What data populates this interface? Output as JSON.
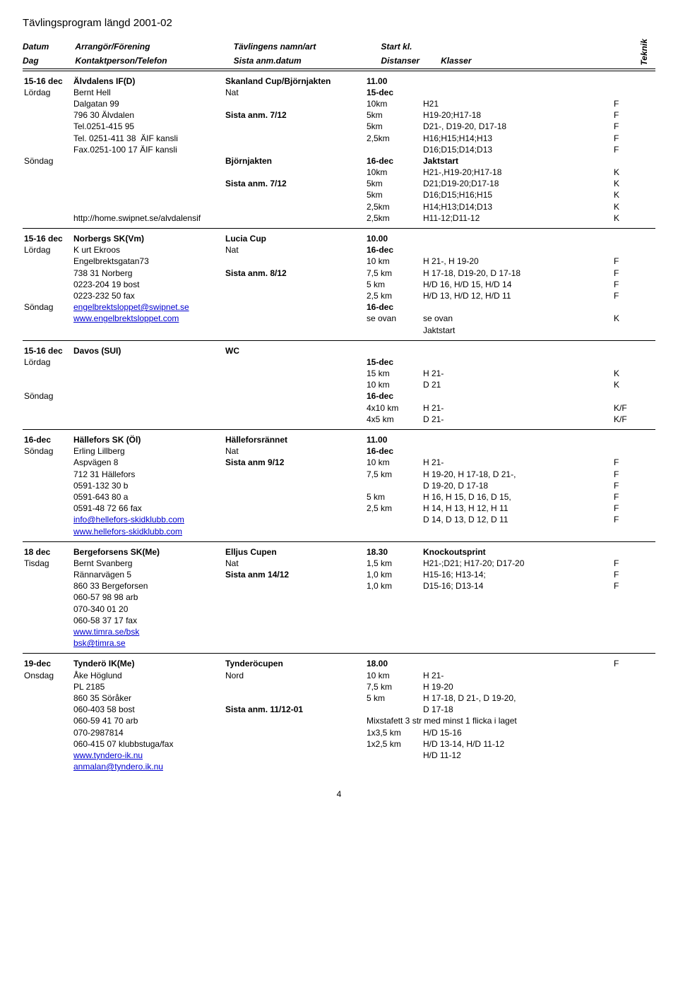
{
  "page_title": "Tävlingsprogram längd  2001-02",
  "header": {
    "col1a": "Datum",
    "col1b": "Dag",
    "col2a": "Arrangör/Förening",
    "col2b": "Kontaktperson/Telefon",
    "col3a": "Tävlingens namn/art",
    "col3b": "Sista anm.datum",
    "col4a": "Start kl.",
    "col4b": "Distanser",
    "col5b": "Klasser",
    "col6": "Teknik"
  },
  "events": [
    {
      "rows": [
        [
          "15-16 dec",
          "Älvdalens IF(D)",
          "Skanland Cup/Björnjakten",
          "11.00",
          "",
          "",
          "b",
          "b",
          "b",
          "b",
          "",
          ""
        ],
        [
          "Lördag",
          "Bernt Hell",
          "Nat",
          "15-dec",
          "",
          "",
          "",
          "",
          "",
          "b",
          "",
          ""
        ],
        [
          "",
          "Dalgatan 99",
          "",
          "10km",
          "H21",
          "F",
          "",
          "",
          "",
          "",
          "",
          ""
        ],
        [
          "",
          "796 30 Älvdalen",
          "Sista anm. 7/12",
          "5km",
          "H19-20;H17-18",
          "F",
          "",
          "",
          "b",
          "",
          "",
          ""
        ],
        [
          "",
          "Tel.0251-415 95",
          "",
          "5km",
          "D21-, D19-20, D17-18",
          "F",
          "",
          "",
          "",
          "",
          "",
          ""
        ],
        [
          "",
          "Tel. 0251-411 38  ÄIF kansli",
          "",
          "2,5km",
          "H16;H15;H14;H13",
          "F",
          "",
          "",
          "",
          "",
          "",
          ""
        ],
        [
          "",
          "Fax.0251-100 17 ÄIF kansli",
          "",
          "",
          "D16;D15;D14;D13",
          "F",
          "",
          "",
          "",
          "",
          "",
          ""
        ],
        [
          "Söndag",
          "",
          "Björnjakten",
          "16-dec",
          "Jaktstart",
          "",
          "",
          "",
          "b",
          "b",
          "b",
          ""
        ],
        [
          "",
          "",
          "",
          "10km",
          "H21-,H19-20;H17-18",
          "K",
          "",
          "",
          "",
          "",
          "",
          ""
        ],
        [
          "",
          "",
          "Sista anm. 7/12",
          "5km",
          "D21;D19-20;D17-18",
          "K",
          "",
          "",
          "b",
          "",
          "",
          ""
        ],
        [
          "",
          "",
          "",
          "5km",
          "D16;D15;H16;H15",
          "K",
          "",
          "",
          "",
          "",
          "",
          ""
        ],
        [
          "",
          "",
          "",
          "2,5km",
          "H14;H13;D14;D13",
          "K",
          "",
          "",
          "",
          "",
          "",
          ""
        ],
        [
          "",
          "http://home.swipnet.se/alvdalensif",
          "",
          "2,5km",
          "H11-12;D11-12",
          "K",
          "",
          "",
          "",
          "",
          "",
          ""
        ]
      ]
    },
    {
      "rows": [
        [
          "15-16 dec",
          "Norbergs SK(Vm)",
          "Lucia Cup",
          "10.00",
          "",
          "",
          "b",
          "b",
          "b",
          "b",
          "",
          ""
        ],
        [
          "Lördag",
          "K urt Ekroos",
          "Nat",
          "16-dec",
          "",
          "",
          "",
          "",
          "",
          "b",
          "",
          ""
        ],
        [
          "",
          "Engelbrektsgatan73",
          "",
          "10 km",
          "H 21-, H 19-20",
          "F",
          "",
          "",
          "",
          "",
          "",
          ""
        ],
        [
          "",
          "738 31 Norberg",
          "Sista anm. 8/12",
          "7,5 km",
          "H 17-18, D19-20, D 17-18",
          "F",
          "",
          "",
          "b",
          "",
          "",
          ""
        ],
        [
          "",
          "0223-204 19 bost",
          "",
          "5 km",
          "H/D 16, H/D 15, H/D 14",
          "F",
          "",
          "",
          "",
          "",
          "",
          ""
        ],
        [
          "",
          "0223-232 50 fax",
          "",
          "2,5 km",
          "H/D 13, H/D 12, H/D 11",
          "F",
          "",
          "",
          "",
          "",
          "",
          ""
        ],
        [
          "Söndag",
          "engelbrektsloppet@swipnet.se",
          "",
          "16-dec",
          "",
          "",
          "",
          "link",
          "",
          "b",
          "",
          ""
        ],
        [
          "",
          "www.engelbrektsloppet.com",
          "",
          "se ovan",
          "se ovan",
          "K",
          "",
          "link",
          "",
          "",
          "",
          ""
        ],
        [
          "",
          "",
          "",
          "",
          "Jaktstart",
          "",
          "",
          "",
          "",
          "",
          "",
          ""
        ]
      ]
    },
    {
      "rows": [
        [
          "15-16 dec",
          "Davos (SUI)",
          "WC",
          "",
          "",
          "",
          "b",
          "b",
          "b",
          "",
          "",
          ""
        ],
        [
          "Lördag",
          "",
          "",
          "15-dec",
          "",
          "",
          "",
          "",
          "",
          "b",
          "",
          ""
        ],
        [
          "",
          "",
          "",
          "15 km",
          "H 21-",
          "K",
          "",
          "",
          "",
          "",
          "",
          ""
        ],
        [
          "",
          "",
          "",
          "10 km",
          "D 21",
          "K",
          "",
          "",
          "",
          "",
          "",
          ""
        ],
        [
          "Söndag",
          "",
          "",
          "16-dec",
          "",
          "",
          "",
          "",
          "",
          "b",
          "",
          ""
        ],
        [
          "",
          "",
          "",
          "4x10 km",
          "H 21-",
          "K/F",
          "",
          "",
          "",
          "",
          "",
          ""
        ],
        [
          "",
          "",
          "",
          "4x5 km",
          "D 21-",
          "K/F",
          "",
          "",
          "",
          "",
          "",
          ""
        ]
      ]
    },
    {
      "rows": [
        [
          "16-dec",
          "Hällefors SK (Öl)",
          "Hälleforsrännet",
          "11.00",
          "",
          "",
          "b",
          "b",
          "b",
          "b",
          "",
          ""
        ],
        [
          "Söndag",
          "Erling Lillberg",
          "Nat",
          "16-dec",
          "",
          "",
          "",
          "",
          "",
          "b",
          "",
          ""
        ],
        [
          "",
          "Aspvägen 8",
          "Sista anm 9/12",
          "10 km",
          "H 21-",
          "F",
          "",
          "",
          "b",
          "",
          "",
          ""
        ],
        [
          "",
          "712 31 Hällefors",
          "",
          "7,5 km",
          "H 19-20, H 17-18, D 21-,",
          "F",
          "",
          "",
          "",
          "",
          "",
          ""
        ],
        [
          "",
          "0591-132 30 b",
          "",
          "",
          "D 19-20, D 17-18",
          "F",
          "",
          "",
          "",
          "",
          "",
          ""
        ],
        [
          "",
          "0591-643 80 a",
          "",
          "5 km",
          "H 16, H 15, D 16, D 15,",
          "F",
          "",
          "",
          "",
          "",
          "",
          ""
        ],
        [
          "",
          "0591-48 72 66 fax",
          "",
          "2,5 km",
          "H 14, H 13, H 12, H 11",
          "F",
          "",
          "",
          "",
          "",
          "",
          ""
        ],
        [
          "",
          "info@hellefors-skidklubb.com",
          "",
          "",
          "D 14, D 13, D 12, D 11",
          "F",
          "",
          "link",
          "",
          "",
          "",
          ""
        ],
        [
          "",
          "www.hellefors-skidklubb.com",
          "",
          "",
          "",
          "",
          "",
          "link",
          "",
          "",
          "",
          ""
        ]
      ]
    },
    {
      "rows": [
        [
          "18 dec",
          "Bergeforsens SK(Me)",
          "Elljus Cupen",
          "18.30",
          "Knockoutsprint",
          "",
          "b",
          "b",
          "b",
          "b",
          "b",
          ""
        ],
        [
          "Tisdag",
          "Bernt Svanberg",
          "Nat",
          "1,5 km",
          "H21-;D21; H17-20; D17-20",
          "F",
          "",
          "",
          "",
          "",
          "",
          ""
        ],
        [
          "",
          "Rännarvägen 5",
          "Sista anm 14/12",
          "1,0 km",
          "H15-16; H13-14;",
          "F",
          "",
          "",
          "b",
          "",
          "",
          ""
        ],
        [
          "",
          "860 33 Bergeforsen",
          "",
          "1,0 km",
          "D15-16; D13-14",
          "F",
          "",
          "",
          "",
          "",
          "",
          ""
        ],
        [
          "",
          "060-57 98 98 arb",
          "",
          "",
          "",
          "",
          "",
          "",
          "",
          "",
          "",
          ""
        ],
        [
          "",
          "070-340 01 20",
          "",
          "",
          "",
          "",
          "",
          "",
          "",
          "",
          "",
          ""
        ],
        [
          "",
          "060-58 37 17 fax",
          "",
          "",
          "",
          "",
          "",
          "",
          "",
          "",
          "",
          ""
        ],
        [
          "",
          "www.timra.se/bsk",
          "",
          "",
          "",
          "",
          "",
          "link",
          "",
          "",
          "",
          ""
        ],
        [
          "",
          "bsk@timra.se",
          "",
          "",
          "",
          "",
          "",
          "link",
          "",
          "",
          "",
          ""
        ]
      ]
    },
    {
      "rows": [
        [
          "19-dec",
          "Tynderö IK(Me)",
          "Tynderöcupen",
          "18.00",
          "",
          "F",
          "b",
          "b",
          "b",
          "b",
          "",
          ""
        ],
        [
          "Onsdag",
          "Åke Höglund",
          "Nord",
          "10 km",
          "H 21-",
          "",
          "",
          "",
          "",
          "",
          "",
          ""
        ],
        [
          "",
          "PL 2185",
          "",
          "7,5 km",
          "H 19-20",
          "",
          "",
          "",
          "",
          "",
          "",
          ""
        ],
        [
          "",
          "860 35 Söråker",
          "",
          "5 km",
          "H 17-18, D 21-, D 19-20,",
          "",
          "",
          "",
          "",
          "",
          "",
          ""
        ],
        [
          "",
          "060-403 58 bost",
          "Sista anm. 11/12-01",
          "",
          "D 17-18",
          "",
          "",
          "",
          "b",
          "",
          "",
          ""
        ],
        [
          "",
          "060-59 41 70 arb",
          "",
          "Mixstafett 3 str med minst 1 flicka i laget",
          "",
          "",
          "",
          "",
          "",
          "",
          "",
          "",
          "wide4"
        ],
        [
          "",
          "070-2987814",
          "",
          "1x3,5 km",
          "H/D 15-16",
          "",
          "",
          "",
          "",
          "",
          "",
          ""
        ],
        [
          "",
          "060-415 07 klubbstuga/fax",
          "",
          "1x2,5 km",
          "H/D 13-14, H/D 11-12",
          "",
          "",
          "",
          "",
          "",
          "",
          ""
        ],
        [
          "",
          "www.tyndero-ik.nu",
          "",
          "",
          "H/D 11-12",
          "",
          "",
          "link",
          "",
          "",
          "",
          ""
        ],
        [
          "",
          "anmalan@tyndero.ik.nu",
          "",
          "",
          "",
          "",
          "",
          "link",
          "",
          "",
          "",
          ""
        ]
      ]
    }
  ],
  "page_number": "4"
}
